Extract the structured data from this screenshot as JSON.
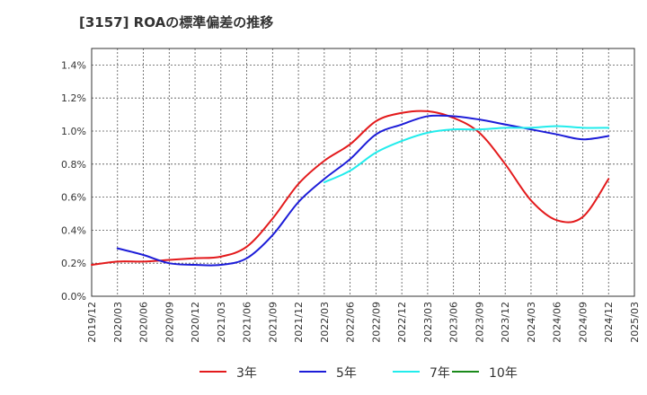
{
  "title": "[3157]  ROAの標準偏差の推移",
  "chart_data": {
    "type": "line",
    "title": "[3157]  ROAの標準偏差の推移",
    "x_ticks": [
      "2019/12",
      "2020/03",
      "2020/06",
      "2020/09",
      "2020/12",
      "2021/03",
      "2021/06",
      "2021/09",
      "2021/12",
      "2022/03",
      "2022/06",
      "2022/09",
      "2022/12",
      "2023/03",
      "2023/06",
      "2023/09",
      "2023/12",
      "2024/03",
      "2024/06",
      "2024/09",
      "2024/12",
      "2025/03"
    ],
    "y_ticks": [
      "0.0%",
      "0.2%",
      "0.4%",
      "0.6%",
      "0.8%",
      "1.0%",
      "1.2%",
      "1.4%"
    ],
    "ylim": [
      0,
      1.5
    ],
    "grid": true,
    "legend_position": "bottom",
    "series": [
      {
        "name": "3年",
        "color": "#e31a1c",
        "x": [
          "2019/12",
          "2020/03",
          "2020/06",
          "2020/09",
          "2020/12",
          "2021/03",
          "2021/06",
          "2021/09",
          "2021/12",
          "2022/03",
          "2022/06",
          "2022/09",
          "2022/12",
          "2023/03",
          "2023/06",
          "2023/09",
          "2023/12",
          "2024/03",
          "2024/06",
          "2024/09",
          "2024/12"
        ],
        "values": [
          0.19,
          0.21,
          0.21,
          0.22,
          0.23,
          0.24,
          0.3,
          0.47,
          0.68,
          0.82,
          0.92,
          1.06,
          1.11,
          1.12,
          1.08,
          0.99,
          0.8,
          0.58,
          0.46,
          0.48,
          0.71
        ]
      },
      {
        "name": "5年",
        "color": "#1c1cd8",
        "x": [
          "2020/03",
          "2020/06",
          "2020/09",
          "2020/12",
          "2021/03",
          "2021/06",
          "2021/09",
          "2021/12",
          "2022/03",
          "2022/06",
          "2022/09",
          "2022/12",
          "2023/03",
          "2023/06",
          "2023/09",
          "2023/12",
          "2024/03",
          "2024/06",
          "2024/09",
          "2024/12"
        ],
        "values": [
          0.29,
          0.25,
          0.2,
          0.19,
          0.19,
          0.23,
          0.37,
          0.57,
          0.71,
          0.83,
          0.98,
          1.04,
          1.09,
          1.09,
          1.07,
          1.04,
          1.01,
          0.98,
          0.95,
          0.97
        ]
      },
      {
        "name": "7年",
        "color": "#22ecec",
        "x": [
          "2022/03",
          "2022/06",
          "2022/09",
          "2022/12",
          "2023/03",
          "2023/06",
          "2023/09",
          "2023/12",
          "2024/03",
          "2024/06",
          "2024/09",
          "2024/12"
        ],
        "values": [
          0.69,
          0.76,
          0.87,
          0.94,
          0.99,
          1.01,
          1.01,
          1.02,
          1.02,
          1.03,
          1.02,
          1.02
        ]
      },
      {
        "name": "10年",
        "color": "#1a8a1a",
        "x": [],
        "values": []
      }
    ]
  }
}
